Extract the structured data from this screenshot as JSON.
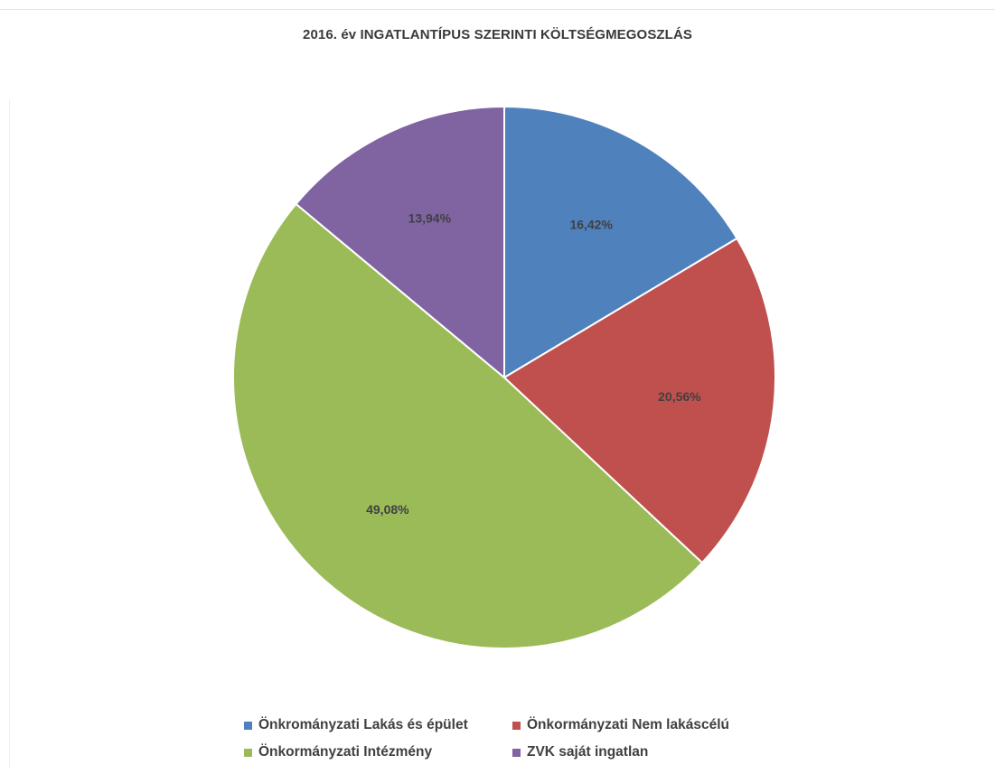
{
  "chart_data": {
    "type": "pie",
    "title": "2016. év INGATLANTÍPUS SZERINTI KÖLTSÉGMEGOSZLÁS",
    "slices": [
      {
        "name": "Önkrományzati Lakás és épület",
        "value": 16.42,
        "label": "16,42%",
        "color": "#4f81bd"
      },
      {
        "name": "Önkormányzati Nem lakáscélú",
        "value": 20.56,
        "label": "20,56%",
        "color": "#c0504d"
      },
      {
        "name": "Önkormányzati Intézmény",
        "value": 49.08,
        "label": "49,08%",
        "color": "#9bbb59"
      },
      {
        "name": "ZVK saját ingatlan",
        "value": 13.94,
        "label": "13,94%",
        "color": "#8064a2"
      }
    ],
    "start_angle": "12 o'clock",
    "direction": "clockwise",
    "legend_position": "bottom"
  }
}
